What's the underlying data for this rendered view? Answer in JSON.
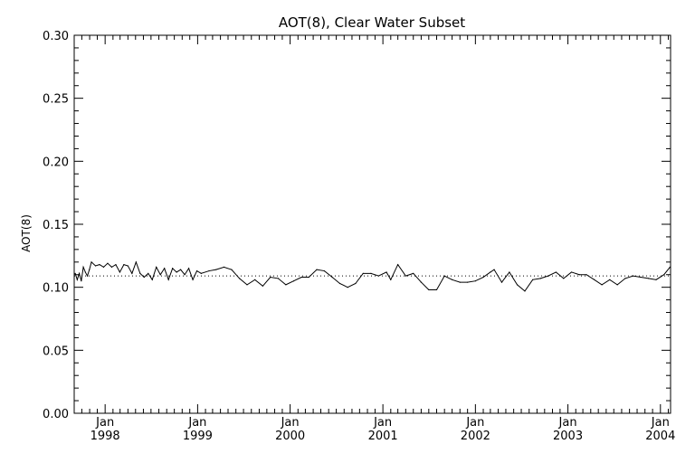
{
  "chart_data": {
    "type": "line",
    "title": "AOT(8), Clear Water Subset",
    "xlabel": "",
    "ylabel": "AOT(8)",
    "ylim": [
      0.0,
      0.3
    ],
    "xlim": [
      "1997-09-01",
      "2004-02-10"
    ],
    "yticks": [
      "0.00",
      "0.05",
      "0.10",
      "0.15",
      "0.20",
      "0.25",
      "0.30"
    ],
    "xticks": [
      {
        "month": "Jan",
        "year": "1998",
        "date": "1998-01-01"
      },
      {
        "month": "Jan",
        "year": "1999",
        "date": "1999-01-01"
      },
      {
        "month": "Jan",
        "year": "2000",
        "date": "2000-01-01"
      },
      {
        "month": "Jan",
        "year": "2001",
        "date": "2001-01-01"
      },
      {
        "month": "Jan",
        "year": "2002",
        "date": "2002-01-01"
      },
      {
        "month": "Jan",
        "year": "2003",
        "date": "2003-01-01"
      },
      {
        "month": "Jan",
        "year": "2004",
        "date": "2004-01-01"
      }
    ],
    "reference_line": {
      "style": "dotted",
      "y": 0.109
    },
    "grid": false,
    "series": [
      {
        "style": "solid",
        "points": [
          [
            "1997-09-05",
            0.111
          ],
          [
            "1997-09-13",
            0.106
          ],
          [
            "1997-09-21",
            0.111
          ],
          [
            "1997-09-29",
            0.105
          ],
          [
            "1997-10-07",
            0.116
          ],
          [
            "1997-10-15",
            0.112
          ],
          [
            "1997-10-23",
            0.109
          ],
          [
            "1997-10-31",
            0.114
          ],
          [
            "1997-11-08",
            0.12
          ],
          [
            "1997-11-24",
            0.117
          ],
          [
            "1997-12-10",
            0.118
          ],
          [
            "1997-12-26",
            0.116
          ],
          [
            "1998-01-11",
            0.119
          ],
          [
            "1998-01-27",
            0.116
          ],
          [
            "1998-02-12",
            0.118
          ],
          [
            "1998-02-28",
            0.112
          ],
          [
            "1998-03-16",
            0.118
          ],
          [
            "1998-04-01",
            0.117
          ],
          [
            "1998-04-17",
            0.111
          ],
          [
            "1998-05-03",
            0.12
          ],
          [
            "1998-05-19",
            0.111
          ],
          [
            "1998-06-04",
            0.108
          ],
          [
            "1998-06-20",
            0.111
          ],
          [
            "1998-07-06",
            0.106
          ],
          [
            "1998-07-22",
            0.116
          ],
          [
            "1998-08-07",
            0.11
          ],
          [
            "1998-08-23",
            0.115
          ],
          [
            "1998-09-08",
            0.106
          ],
          [
            "1998-09-24",
            0.115
          ],
          [
            "1998-10-10",
            0.112
          ],
          [
            "1998-10-26",
            0.114
          ],
          [
            "1998-11-11",
            0.11
          ],
          [
            "1998-11-27",
            0.115
          ],
          [
            "1998-12-13",
            0.106
          ],
          [
            "1998-12-29",
            0.113
          ],
          [
            "1999-01-15",
            0.111
          ],
          [
            "1999-02-15",
            0.113
          ],
          [
            "1999-03-15",
            0.114
          ],
          [
            "1999-04-15",
            0.116
          ],
          [
            "1999-05-15",
            0.114
          ],
          [
            "1999-06-15",
            0.107
          ],
          [
            "1999-07-15",
            0.102
          ],
          [
            "1999-08-15",
            0.106
          ],
          [
            "1999-09-15",
            0.101
          ],
          [
            "1999-10-15",
            0.108
          ],
          [
            "1999-11-15",
            0.107
          ],
          [
            "1999-12-15",
            0.102
          ],
          [
            "2000-01-15",
            0.105
          ],
          [
            "2000-02-15",
            0.108
          ],
          [
            "2000-03-15",
            0.108
          ],
          [
            "2000-04-15",
            0.114
          ],
          [
            "2000-05-15",
            0.113
          ],
          [
            "2000-06-15",
            0.108
          ],
          [
            "2000-07-15",
            0.103
          ],
          [
            "2000-08-15",
            0.1
          ],
          [
            "2000-09-15",
            0.103
          ],
          [
            "2000-10-15",
            0.111
          ],
          [
            "2000-11-15",
            0.111
          ],
          [
            "2000-12-15",
            0.109
          ],
          [
            "2001-01-15",
            0.112
          ],
          [
            "2001-02-01",
            0.106
          ],
          [
            "2001-03-01",
            0.118
          ],
          [
            "2001-04-01",
            0.109
          ],
          [
            "2001-05-01",
            0.111
          ],
          [
            "2001-06-01",
            0.104
          ],
          [
            "2001-07-01",
            0.098
          ],
          [
            "2001-08-01",
            0.098
          ],
          [
            "2001-09-01",
            0.109
          ],
          [
            "2001-10-01",
            0.106
          ],
          [
            "2001-11-01",
            0.104
          ],
          [
            "2001-12-01",
            0.104
          ],
          [
            "2002-01-01",
            0.105
          ],
          [
            "2002-02-01",
            0.108
          ],
          [
            "2002-03-01",
            0.112
          ],
          [
            "2002-03-16",
            0.114
          ],
          [
            "2002-04-15",
            0.104
          ],
          [
            "2002-05-15",
            0.112
          ],
          [
            "2002-06-15",
            0.102
          ],
          [
            "2002-07-15",
            0.097
          ],
          [
            "2002-08-15",
            0.106
          ],
          [
            "2002-09-15",
            0.107
          ],
          [
            "2002-10-15",
            0.109
          ],
          [
            "2002-11-15",
            0.112
          ],
          [
            "2002-12-15",
            0.107
          ],
          [
            "2003-01-15",
            0.112
          ],
          [
            "2003-02-15",
            0.11
          ],
          [
            "2003-03-15",
            0.11
          ],
          [
            "2003-04-15",
            0.106
          ],
          [
            "2003-05-15",
            0.102
          ],
          [
            "2003-06-15",
            0.106
          ],
          [
            "2003-07-15",
            0.102
          ],
          [
            "2003-08-15",
            0.107
          ],
          [
            "2003-09-15",
            0.109
          ],
          [
            "2003-10-15",
            0.108
          ],
          [
            "2003-11-15",
            0.107
          ],
          [
            "2003-12-15",
            0.106
          ],
          [
            "2004-01-15",
            0.11
          ],
          [
            "2004-02-08",
            0.116
          ]
        ]
      }
    ]
  }
}
